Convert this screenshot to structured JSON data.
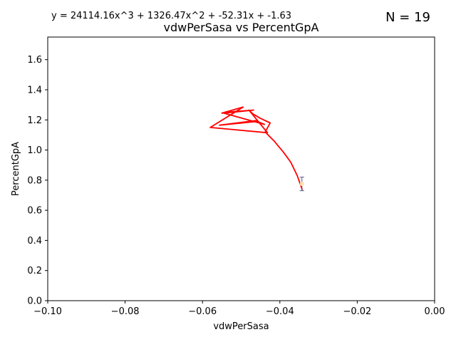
{
  "equation": "y = 24114.16x^3 + 1326.47x^2 + -52.31x + -1.63",
  "n_label": "N = 19",
  "chart_data": {
    "type": "line",
    "title": "vdwPerSasa vs PercentGpA",
    "xlabel": "vdwPerSasa",
    "ylabel": "PercentGpA",
    "xlim": [
      -0.1,
      0.0
    ],
    "ylim": [
      0.0,
      1.75
    ],
    "xticks": [
      -0.1,
      -0.08,
      -0.06,
      -0.04,
      -0.02,
      0.0
    ],
    "xtick_labels": [
      "−0.10",
      "−0.08",
      "−0.06",
      "−0.04",
      "−0.02",
      "0.00"
    ],
    "yticks": [
      0.0,
      0.2,
      0.4,
      0.6,
      0.8,
      1.0,
      1.2,
      1.4,
      1.6
    ],
    "ytick_labels": [
      "0.0",
      "0.2",
      "0.4",
      "0.6",
      "0.8",
      "1.0",
      "1.2",
      "1.4",
      "1.6"
    ],
    "grid": false,
    "fit_color": "#ff0000",
    "point_color": "#ffe0b0",
    "errorbar_color": "#4a5a8a",
    "series": [
      {
        "kind": "fit-line",
        "x": [
          -0.0342,
          -0.0355,
          -0.0372,
          -0.0392,
          -0.0415,
          -0.0438,
          -0.0425,
          -0.045,
          -0.047,
          -0.048,
          -0.0432,
          -0.058,
          -0.0495,
          -0.055,
          -0.052,
          -0.0468,
          -0.0545,
          -0.044,
          -0.0463,
          -0.0556,
          -0.0457,
          -0.0462
        ],
        "y": [
          0.735,
          0.83,
          0.92,
          0.99,
          1.06,
          1.12,
          1.18,
          1.21,
          1.24,
          1.265,
          1.115,
          1.15,
          1.285,
          1.245,
          1.255,
          1.265,
          1.245,
          1.17,
          1.195,
          1.165,
          1.19,
          1.185
        ]
      },
      {
        "kind": "points",
        "x": [
          -0.0343
        ],
        "y": [
          0.775
        ],
        "yerr": [
          0.045
        ]
      }
    ]
  }
}
